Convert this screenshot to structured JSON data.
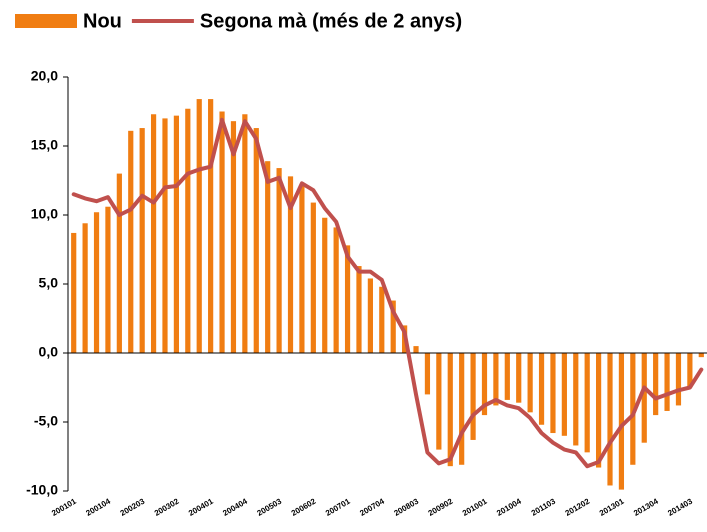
{
  "chart_data": {
    "type": "bar",
    "categories": [
      "200101",
      null,
      null,
      "200104",
      null,
      null,
      "200203",
      null,
      null,
      "200302",
      null,
      null,
      "200401",
      null,
      null,
      "200404",
      null,
      null,
      "200503",
      null,
      null,
      "200602",
      null,
      null,
      "200701",
      null,
      null,
      "200704",
      null,
      null,
      "200803",
      null,
      null,
      "200902",
      null,
      null,
      "201001",
      null,
      null,
      "201004",
      null,
      null,
      "201103",
      null,
      null,
      "201202",
      null,
      null,
      "201301",
      null,
      null,
      "201304",
      null,
      null,
      "201403",
      null
    ],
    "series": [
      {
        "name": "Nou",
        "type": "bar",
        "color": "#f07d12",
        "values": [
          8.7,
          9.4,
          10.2,
          10.6,
          13.0,
          16.1,
          16.3,
          17.3,
          17.0,
          17.2,
          17.7,
          18.4,
          18.4,
          17.5,
          16.8,
          17.3,
          16.3,
          13.9,
          13.4,
          12.8,
          12.2,
          10.9,
          9.8,
          9.1,
          7.8,
          6.3,
          5.4,
          4.8,
          3.8,
          2.0,
          0.5,
          -3.0,
          -7.0,
          -8.2,
          -8.1,
          -6.3,
          -4.5,
          -3.8,
          -3.4,
          -3.6,
          -4.3,
          -5.2,
          -5.8,
          -6.0,
          -6.7,
          -7.2,
          -8.3,
          -9.6,
          -9.9,
          -8.1,
          -6.5,
          -4.5,
          -4.2,
          -3.8,
          -2.5,
          -0.3
        ]
      },
      {
        "name": "Segona mà (més de 2 anys)",
        "type": "line",
        "color": "#c0504d",
        "values": [
          11.5,
          11.2,
          11.0,
          11.3,
          10.0,
          10.4,
          11.4,
          10.9,
          12.0,
          12.1,
          13.0,
          13.3,
          13.5,
          16.9,
          14.4,
          16.8,
          15.5,
          12.4,
          12.7,
          10.5,
          12.3,
          11.8,
          10.5,
          9.5,
          7.0,
          5.9,
          5.9,
          5.3,
          3.0,
          1.5,
          -3.0,
          -7.2,
          -8.0,
          -7.7,
          -5.8,
          -4.5,
          -3.8,
          -3.4,
          -3.8,
          -4.0,
          -4.7,
          -5.8,
          -6.5,
          -7.0,
          -7.2,
          -8.2,
          -7.9,
          -6.5,
          -5.3,
          -4.5,
          -2.5,
          -3.3,
          -3.0,
          -2.7,
          -2.5,
          -1.2
        ]
      }
    ],
    "ylim": [
      -10,
      20
    ],
    "yticks": [
      {
        "value": -10,
        "label": "-10,0"
      },
      {
        "value": -5,
        "label": "-5,0"
      },
      {
        "value": 0,
        "label": "0,0"
      },
      {
        "value": 5,
        "label": "5,0"
      },
      {
        "value": 10,
        "label": "10,0"
      },
      {
        "value": 15,
        "label": "15,0"
      },
      {
        "value": 20,
        "label": "20,0"
      }
    ],
    "legend": "top-left"
  }
}
